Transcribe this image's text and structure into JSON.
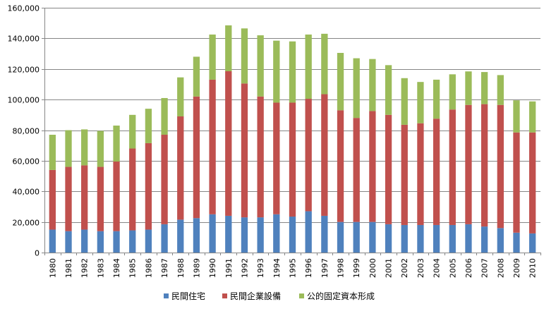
{
  "chart_data": {
    "type": "bar",
    "stacked": true,
    "title": "",
    "xlabel": "",
    "ylabel": "",
    "ylim": [
      0,
      160000
    ],
    "yticks": [
      "0",
      "20,000",
      "40,000",
      "60,000",
      "80,000",
      "100,000",
      "120,000",
      "140,000",
      "160,000"
    ],
    "grid": true,
    "legend": "bottom",
    "categories": [
      "1980",
      "1981",
      "1982",
      "1983",
      "1984",
      "1985",
      "1986",
      "1987",
      "1988",
      "1989",
      "1990",
      "1991",
      "1992",
      "1993",
      "1994",
      "1995",
      "1996",
      "1997",
      "1998",
      "1999",
      "2000",
      "2001",
      "2002",
      "2003",
      "2004",
      "2005",
      "2006",
      "2007",
      "2008",
      "2009",
      "2010"
    ],
    "series": [
      {
        "name": "民間住宅",
        "color": "#4F81BD",
        "values": [
          15000,
          14000,
          15000,
          14000,
          14000,
          14500,
          15000,
          18500,
          21500,
          22500,
          25000,
          24000,
          23000,
          23000,
          25000,
          23500,
          27000,
          24000,
          20000,
          20000,
          20000,
          18500,
          18000,
          18000,
          18000,
          18000,
          18500,
          17000,
          16000,
          13000,
          12500
        ]
      },
      {
        "name": "民間企業設備",
        "color": "#C0504D",
        "values": [
          39000,
          42000,
          42000,
          42000,
          45500,
          53500,
          56500,
          58500,
          67500,
          79500,
          88000,
          94500,
          87500,
          79000,
          73000,
          74500,
          73500,
          79500,
          73000,
          68000,
          72500,
          71500,
          65500,
          66500,
          69500,
          75500,
          78000,
          80000,
          80500,
          65500,
          66000
        ]
      },
      {
        "name": "公的固定資本形成",
        "color": "#9BBB59",
        "values": [
          23000,
          24000,
          23500,
          23500,
          23500,
          22000,
          22500,
          24000,
          25500,
          26000,
          29500,
          30000,
          36000,
          40000,
          40500,
          40000,
          42000,
          39500,
          37500,
          39000,
          34000,
          32500,
          30500,
          27000,
          25500,
          23000,
          21900,
          21000,
          19500,
          21000,
          20300
        ]
      }
    ]
  }
}
